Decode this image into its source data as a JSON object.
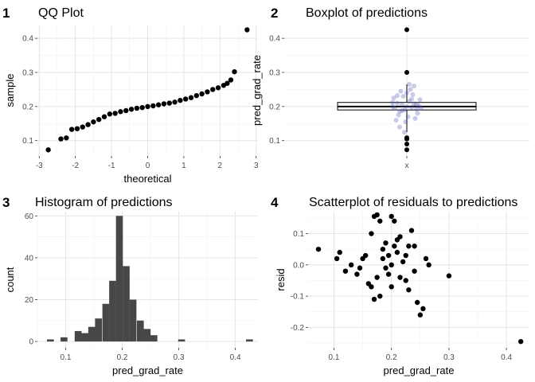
{
  "chart_data": [
    {
      "tag": "1",
      "type": "scatter",
      "title": "QQ Plot",
      "xlabel": "theoretical",
      "ylabel": "sample",
      "xlim": [
        -3.05,
        3.05
      ],
      "ylim": [
        0.055,
        0.44
      ],
      "xticks": [
        -3,
        -2,
        -1,
        0,
        1,
        2,
        3
      ],
      "xtick_labels": [
        "-3",
        "-2",
        "-1",
        "0",
        "1",
        "2",
        "3"
      ],
      "yticks": [
        0.1,
        0.2,
        0.3,
        0.4
      ],
      "ytick_labels": [
        "0.1",
        "0.2",
        "0.3",
        "0.4"
      ],
      "grid": true,
      "point_color": "#000000",
      "points": [
        [
          -2.75,
          0.073
        ],
        [
          -2.4,
          0.105
        ],
        [
          -2.25,
          0.108
        ],
        [
          -2.1,
          0.133
        ],
        [
          -1.95,
          0.135
        ],
        [
          -1.8,
          0.14
        ],
        [
          -1.65,
          0.147
        ],
        [
          -1.5,
          0.155
        ],
        [
          -1.35,
          0.162
        ],
        [
          -1.2,
          0.17
        ],
        [
          -1.05,
          0.178
        ],
        [
          -0.9,
          0.18
        ],
        [
          -0.75,
          0.185
        ],
        [
          -0.6,
          0.188
        ],
        [
          -0.45,
          0.192
        ],
        [
          -0.3,
          0.195
        ],
        [
          -0.15,
          0.197
        ],
        [
          0.0,
          0.2
        ],
        [
          0.15,
          0.202
        ],
        [
          0.3,
          0.205
        ],
        [
          0.45,
          0.208
        ],
        [
          0.6,
          0.21
        ],
        [
          0.75,
          0.213
        ],
        [
          0.9,
          0.218
        ],
        [
          1.05,
          0.222
        ],
        [
          1.2,
          0.226
        ],
        [
          1.35,
          0.232
        ],
        [
          1.5,
          0.237
        ],
        [
          1.65,
          0.243
        ],
        [
          1.8,
          0.25
        ],
        [
          1.95,
          0.255
        ],
        [
          2.1,
          0.262
        ],
        [
          2.2,
          0.268
        ],
        [
          2.3,
          0.278
        ],
        [
          2.4,
          0.302
        ],
        [
          2.75,
          0.425
        ]
      ]
    },
    {
      "tag": "2",
      "type": "boxplot",
      "title": "Boxplot of predictions",
      "xlabel": "",
      "ylabel": "pred_grad_rate",
      "categories": [
        "x"
      ],
      "ylim": [
        0.055,
        0.44
      ],
      "yticks": [
        0.1,
        0.2,
        0.3,
        0.4
      ],
      "ytick_labels": [
        "0.1",
        "0.2",
        "0.3",
        "0.4"
      ],
      "grid": true,
      "box": {
        "q1": 0.19,
        "median": 0.2,
        "q3": 0.212,
        "whisker_low": 0.125,
        "whisker_high": 0.265
      },
      "outliers": [
        0.073,
        0.09,
        0.105,
        0.108,
        0.3,
        0.425
      ],
      "jitter_color": "#4a4fae",
      "jitter_points": [
        [
          -0.6,
          0.2
        ],
        [
          -0.5,
          0.195
        ],
        [
          -0.4,
          0.21
        ],
        [
          -0.3,
          0.185
        ],
        [
          -0.2,
          0.205
        ],
        [
          -0.1,
          0.19
        ],
        [
          0.0,
          0.2
        ],
        [
          0.1,
          0.215
        ],
        [
          0.2,
          0.198
        ],
        [
          0.3,
          0.208
        ],
        [
          0.4,
          0.192
        ],
        [
          0.5,
          0.202
        ],
        [
          -0.55,
          0.225
        ],
        [
          -0.35,
          0.175
        ],
        [
          -0.15,
          0.23
        ],
        [
          0.05,
          0.17
        ],
        [
          0.25,
          0.235
        ],
        [
          0.45,
          0.18
        ],
        [
          -0.45,
          0.16
        ],
        [
          -0.25,
          0.245
        ],
        [
          -0.05,
          0.155
        ],
        [
          0.15,
          0.25
        ],
        [
          0.35,
          0.165
        ],
        [
          0.55,
          0.22
        ],
        [
          -0.6,
          0.212
        ],
        [
          -0.2,
          0.188
        ],
        [
          0.2,
          0.222
        ],
        [
          0.6,
          0.196
        ],
        [
          -0.3,
          0.14
        ],
        [
          0.3,
          0.26
        ],
        [
          -0.1,
          0.125
        ],
        [
          0.1,
          0.265
        ],
        [
          0.0,
          0.11
        ],
        [
          -0.4,
          0.232
        ],
        [
          0.4,
          0.206
        ],
        [
          0.0,
          0.24
        ]
      ]
    },
    {
      "tag": "3",
      "type": "bar",
      "title": "Histogram of predictions",
      "xlabel": "pred_grad_rate",
      "ylabel": "count",
      "xlim": [
        0.05,
        0.44
      ],
      "ylim": [
        -3,
        62
      ],
      "xticks": [
        0.1,
        0.2,
        0.3,
        0.4
      ],
      "xtick_labels": [
        "0.1",
        "0.2",
        "0.3",
        "0.4"
      ],
      "yticks": [
        0,
        20,
        40,
        60
      ],
      "ytick_labels": [
        "0",
        "20",
        "40",
        "60"
      ],
      "grid": true,
      "bar_color": "#474747",
      "bin_width": 0.0122,
      "bins": [
        [
          0.073,
          1
        ],
        [
          0.097,
          2
        ],
        [
          0.122,
          5
        ],
        [
          0.134,
          4
        ],
        [
          0.146,
          7
        ],
        [
          0.158,
          11
        ],
        [
          0.171,
          18
        ],
        [
          0.183,
          29
        ],
        [
          0.195,
          60
        ],
        [
          0.207,
          36
        ],
        [
          0.219,
          20
        ],
        [
          0.232,
          10
        ],
        [
          0.244,
          6
        ],
        [
          0.256,
          3
        ],
        [
          0.305,
          1
        ],
        [
          0.425,
          1
        ]
      ]
    },
    {
      "tag": "4",
      "type": "scatter",
      "title": "Scatterplot of residuals to predictions",
      "xlabel": "pred_grad_rate",
      "ylabel": "resid",
      "xlim": [
        0.055,
        0.44
      ],
      "ylim": [
        -0.265,
        0.17
      ],
      "xticks": [
        0.1,
        0.2,
        0.3,
        0.4
      ],
      "xtick_labels": [
        "0.1",
        "0.2",
        "0.3",
        "0.4"
      ],
      "yticks": [
        -0.2,
        -0.1,
        0.0,
        0.1
      ],
      "ytick_labels": [
        "-0.2",
        "-0.1",
        "0.0",
        "0.1"
      ],
      "grid": true,
      "point_color": "#000000",
      "points": [
        [
          0.073,
          0.05
        ],
        [
          0.105,
          0.02
        ],
        [
          0.11,
          0.04
        ],
        [
          0.12,
          -0.02
        ],
        [
          0.13,
          0.0
        ],
        [
          0.14,
          -0.03
        ],
        [
          0.15,
          0.02
        ],
        [
          0.16,
          -0.06
        ],
        [
          0.165,
          0.1
        ],
        [
          0.17,
          0.155
        ],
        [
          0.175,
          0.16
        ],
        [
          0.18,
          0.14
        ],
        [
          0.185,
          0.05
        ],
        [
          0.19,
          -0.01
        ],
        [
          0.195,
          0.03
        ],
        [
          0.2,
          0.0
        ],
        [
          0.2,
          0.155
        ],
        [
          0.205,
          0.14
        ],
        [
          0.21,
          0.08
        ],
        [
          0.215,
          -0.04
        ],
        [
          0.22,
          0.01
        ],
        [
          0.225,
          -0.05
        ],
        [
          0.23,
          0.06
        ],
        [
          0.235,
          0.11
        ],
        [
          0.24,
          -0.02
        ],
        [
          0.245,
          -0.12
        ],
        [
          0.25,
          -0.16
        ],
        [
          0.255,
          -0.14
        ],
        [
          0.26,
          0.02
        ],
        [
          0.265,
          0.0
        ],
        [
          0.3,
          -0.035
        ],
        [
          0.425,
          -0.245
        ],
        [
          0.18,
          -0.1
        ],
        [
          0.19,
          0.07
        ],
        [
          0.2,
          -0.07
        ],
        [
          0.21,
          0.04
        ],
        [
          0.215,
          0.09
        ],
        [
          0.175,
          -0.04
        ],
        [
          0.185,
          0.02
        ],
        [
          0.195,
          -0.03
        ],
        [
          0.205,
          0.06
        ],
        [
          0.225,
          0.03
        ],
        [
          0.17,
          -0.11
        ],
        [
          0.165,
          -0.07
        ],
        [
          0.155,
          0.03
        ],
        [
          0.145,
          -0.01
        ],
        [
          0.24,
          0.06
        ],
        [
          0.23,
          -0.08
        ]
      ]
    }
  ]
}
